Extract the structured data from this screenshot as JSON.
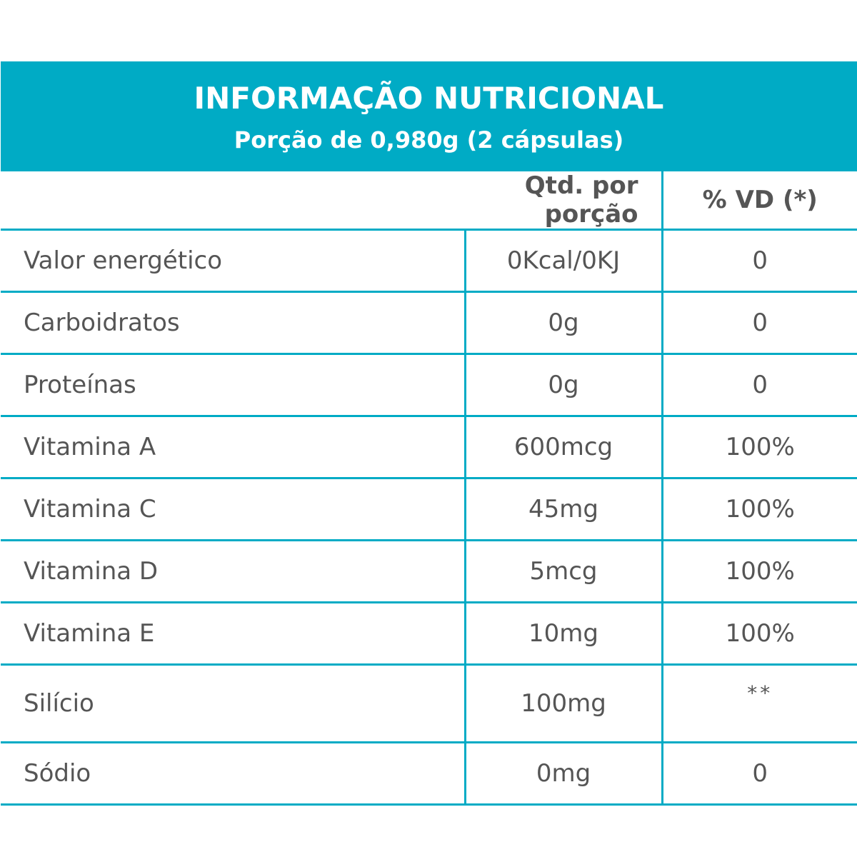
{
  "header": {
    "title": "INFORMAÇÃO NUTRICIONAL",
    "subtitle": "Porção de 0,980g (2 cápsulas)",
    "accent_color": "#00abc5"
  },
  "table": {
    "columns": {
      "quantity": "Qtd. por porção",
      "daily_value": "% VD (*)"
    },
    "rows": [
      {
        "name": "Valor energético",
        "quantity": "0Kcal/0KJ",
        "daily_value": "0"
      },
      {
        "name": "Carboidratos",
        "quantity": "0g",
        "daily_value": "0"
      },
      {
        "name": "Proteínas",
        "quantity": "0g",
        "daily_value": "0"
      },
      {
        "name": "Vitamina A",
        "quantity": "600mcg",
        "daily_value": "100%"
      },
      {
        "name": "Vitamina C",
        "quantity": "45mg",
        "daily_value": "100%"
      },
      {
        "name": "Vitamina D",
        "quantity": "5mcg",
        "daily_value": "100%"
      },
      {
        "name": "Vitamina E",
        "quantity": "10mg",
        "daily_value": "100%"
      },
      {
        "name": "Silício",
        "quantity": "100mg",
        "daily_value": "**"
      },
      {
        "name": "Sódio",
        "quantity": "0mg",
        "daily_value": "0"
      }
    ]
  }
}
